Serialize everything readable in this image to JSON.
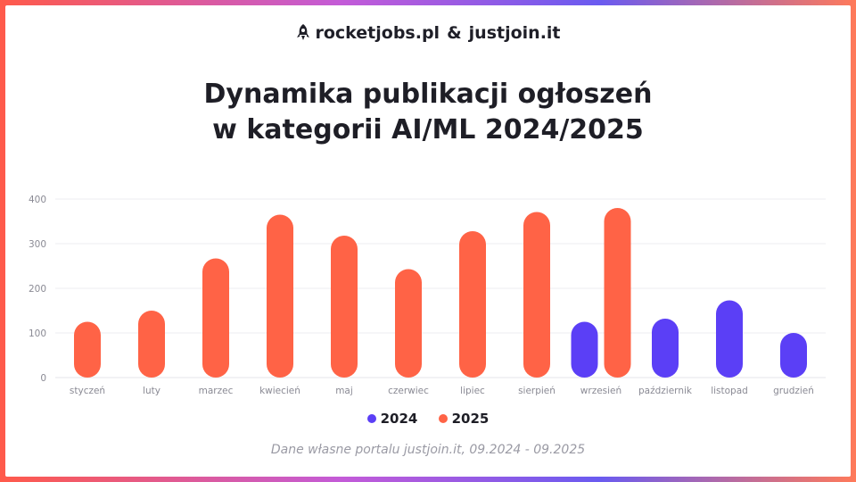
{
  "brand": {
    "logo1": "rocketjobs.pl",
    "amp": "&",
    "logo2": "justjoin.it"
  },
  "title_line1": "Dynamika publikacji ogłoszeń",
  "title_line2": "w kategorii AI/ML 2024/2025",
  "source": "Dane własne portalu justjoin.it, 09.2024 - 09.2025",
  "colors": {
    "s2024": "#5b3ff6",
    "s2025": "#ff6346"
  },
  "chart_data": {
    "type": "bar",
    "title": "Dynamika publikacji ogłoszeń w kategorii AI/ML 2024/2025",
    "categories": [
      "styczeń",
      "luty",
      "marzec",
      "kwiecień",
      "maj",
      "czerwiec",
      "lipiec",
      "sierpień",
      "wrzesień",
      "październik",
      "listopad",
      "grudzień"
    ],
    "series": [
      {
        "name": "2024",
        "values": [
          null,
          null,
          null,
          null,
          null,
          null,
          null,
          null,
          125,
          132,
          173,
          100
        ]
      },
      {
        "name": "2025",
        "values": [
          125,
          150,
          267,
          365,
          318,
          243,
          328,
          371,
          380,
          null,
          null,
          null
        ]
      }
    ],
    "yticks": [
      0,
      100,
      200,
      300,
      400
    ],
    "ylim": [
      0,
      400
    ],
    "grid": true,
    "legend": "bottom-center"
  }
}
